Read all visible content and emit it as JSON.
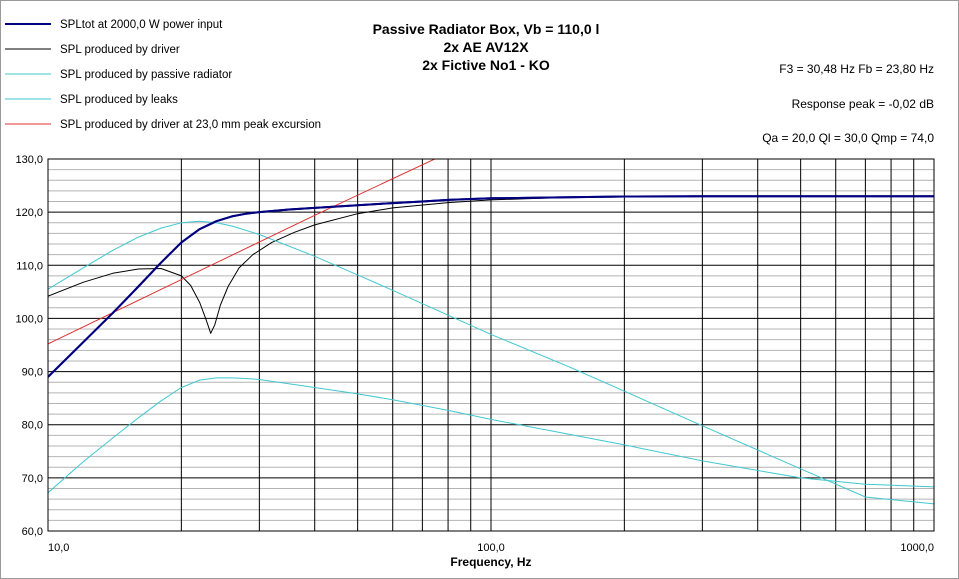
{
  "chart_data": {
    "type": "line",
    "title_lines": [
      "Passive Radiator Box, Vb = 110,0 l",
      "2x AE AV12X",
      "2x Fictive No1 - KO"
    ],
    "xlabel": "Frequency, Hz",
    "ylabel": "",
    "x_scale": "log",
    "xlim": [
      10,
      1000
    ],
    "ylim": [
      60,
      130
    ],
    "y_ticks": [
      "60,0",
      "70,0",
      "80,0",
      "90,0",
      "100,0",
      "110,0",
      "120,0",
      "130,0"
    ],
    "x_ticks": [
      {
        "value": 10,
        "label": "10,0"
      },
      {
        "value": 100,
        "label": "100,0"
      },
      {
        "value": 1000,
        "label": "1000,0"
      }
    ],
    "grid": true,
    "legend_position": "top-left",
    "stats": [
      "F3 = 30,48 Hz  Fb = 23,80 Hz",
      "Response peak = -0,02 dB",
      "Qa = 20,0  Ql = 30,0  Qmp = 74,0"
    ],
    "series": [
      {
        "name": "SPLtot at 2000,0 W power input",
        "color": "#000080",
        "width": 2,
        "x": [
          10,
          12,
          14,
          16,
          18,
          20,
          22,
          24,
          26,
          28,
          30,
          35,
          40,
          50,
          60,
          70,
          80,
          100,
          150,
          200,
          300,
          500,
          700,
          1000
        ],
        "y": [
          89,
          95.5,
          101,
          106,
          110.5,
          114.3,
          116.8,
          118.3,
          119.2,
          119.7,
          120.0,
          120.5,
          120.8,
          121.3,
          121.7,
          122.0,
          122.3,
          122.6,
          122.8,
          122.95,
          123.0,
          123.0,
          123.0,
          123.0
        ]
      },
      {
        "name": "SPL produced by driver",
        "color": "#000000",
        "width": 1,
        "x": [
          10,
          12,
          14,
          16,
          18,
          20,
          21,
          22,
          22.8,
          23.3,
          23.8,
          24.5,
          25.5,
          27,
          29,
          32,
          36,
          40,
          50,
          60,
          80,
          100,
          150,
          200,
          300,
          500,
          1000
        ],
        "y": [
          104.2,
          106.8,
          108.5,
          109.3,
          109.4,
          108,
          106.2,
          103,
          99.5,
          97.2,
          98.8,
          102.5,
          106,
          109.5,
          112,
          114.3,
          116.2,
          117.6,
          119.7,
          120.8,
          121.8,
          122.3,
          122.8,
          122.95,
          123.0,
          123.0,
          123.0
        ]
      },
      {
        "name": "SPL produced by passive radiator",
        "color": "#40C8D0",
        "width": 1,
        "x": [
          10,
          12,
          14,
          16,
          18,
          20,
          22,
          24,
          26,
          30,
          40,
          50,
          60,
          80,
          100,
          150,
          200,
          300,
          500,
          700,
          1000
        ],
        "y": [
          105.5,
          109.5,
          112.8,
          115.3,
          117.0,
          118.0,
          118.3,
          118.0,
          117.4,
          115.8,
          111.7,
          108.2,
          105.3,
          100.6,
          97.0,
          90.9,
          86.3,
          79.8,
          71.7,
          66.4,
          65.1
        ]
      },
      {
        "name": "SPL produced by leaks",
        "color": "#40C8D0",
        "width": 1,
        "x": [
          10,
          12,
          14,
          16,
          18,
          20,
          22,
          24,
          26,
          28,
          30,
          40,
          50,
          60,
          80,
          100,
          150,
          200,
          300,
          500,
          700,
          1000
        ],
        "y": [
          67.2,
          73,
          77.5,
          81.3,
          84.5,
          87,
          88.4,
          88.8,
          88.8,
          88.7,
          88.5,
          87.0,
          85.8,
          84.7,
          82.7,
          81.0,
          78.2,
          76.2,
          73.2,
          70.0,
          68.8,
          68.3
        ]
      },
      {
        "name": "SPL produced by driver at 23,0 mm peak excursion",
        "color": "#E03030",
        "width": 1,
        "x": [
          10,
          20,
          40,
          76
        ],
        "y": [
          95.2,
          107.3,
          119.4,
          130.3
        ]
      }
    ]
  }
}
